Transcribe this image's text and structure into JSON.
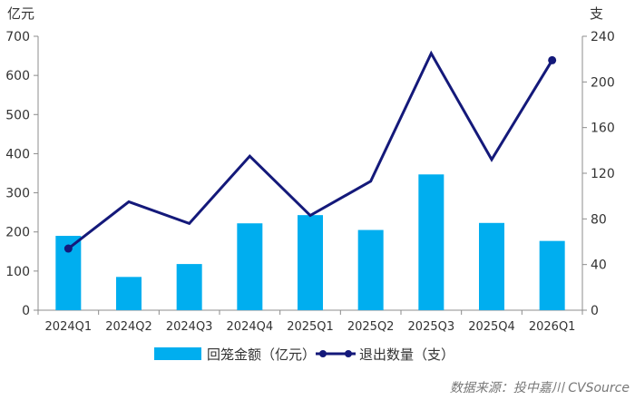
{
  "chart_data": {
    "type": "bar+line",
    "categories": [
      "2024Q1",
      "2024Q2",
      "2024Q3",
      "2024Q4",
      "2025Q1",
      "2025Q2",
      "2025Q3",
      "2025Q4",
      "2026Q1"
    ],
    "left_axis_unit": "亿元",
    "right_axis_unit": "支",
    "left_ylim": [
      0,
      700
    ],
    "left_ticks": [
      0,
      100,
      200,
      300,
      400,
      500,
      600,
      700
    ],
    "right_ylim": [
      0,
      240
    ],
    "right_ticks": [
      0,
      40,
      80,
      120,
      160,
      200,
      240
    ],
    "series": [
      {
        "name": "回笼金额（亿元）",
        "type": "bar",
        "axis": "left",
        "color": "#00aeef",
        "values": [
          190,
          85,
          118,
          222,
          243,
          205,
          347,
          223,
          177
        ]
      },
      {
        "name": "退出数量（支）",
        "type": "line",
        "axis": "right",
        "color": "#14197a",
        "values": [
          54,
          95,
          76,
          135,
          83,
          113,
          225,
          132,
          219
        ]
      }
    ],
    "legend_position": "bottom",
    "grid": false,
    "source_note": "数据来源：投中嘉川 CVSource"
  }
}
